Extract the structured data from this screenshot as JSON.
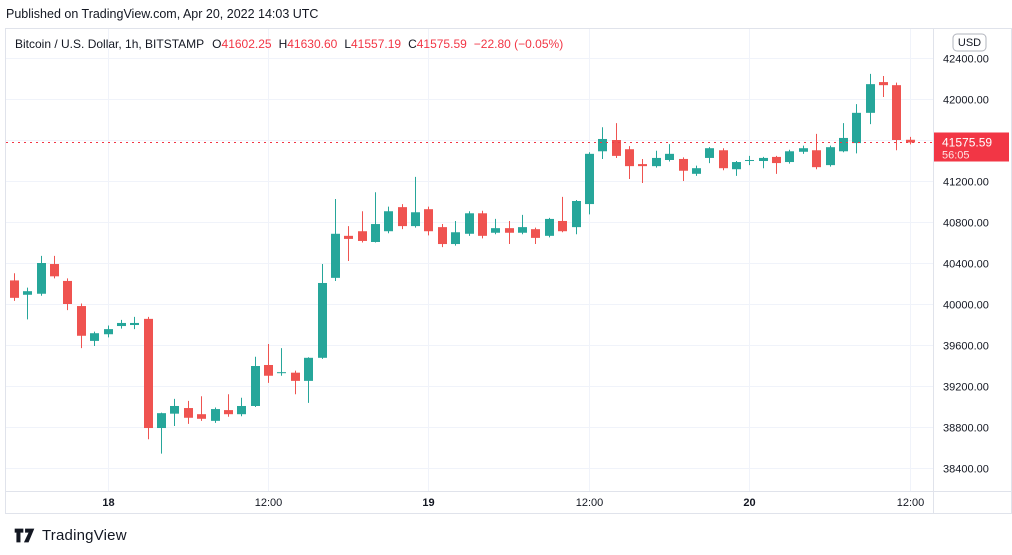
{
  "published_line": "Published on TradingView.com, Apr 20, 2022 14:03 UTC",
  "legend": {
    "symbol_title": "Bitcoin / U.S. Dollar, 1h, BITSTAMP",
    "ohlc_labels": {
      "o": "O",
      "h": "H",
      "l": "L",
      "c": "C"
    },
    "ohlc_values": {
      "o": "41602.25",
      "h": "41630.60",
      "l": "41557.19",
      "c": "41575.59"
    },
    "change_text": "−22.80 (−0.05%)"
  },
  "price_axis": {
    "currency_button": "USD",
    "ticks": [
      "42400.00",
      "42000.00",
      "41600.00",
      "41200.00",
      "40800.00",
      "40400.00",
      "40000.00",
      "39600.00",
      "39200.00",
      "38800.00",
      "38400.00"
    ],
    "last_price_badge": {
      "price": "41575.59",
      "countdown": "56:05"
    }
  },
  "time_axis": {
    "ticks": [
      {
        "label": "18",
        "candle_index": 7,
        "major": true
      },
      {
        "label": "12:00",
        "candle_index": 19,
        "major": false
      },
      {
        "label": "19",
        "candle_index": 31,
        "major": true
      },
      {
        "label": "12:00",
        "candle_index": 43,
        "major": false
      },
      {
        "label": "20",
        "candle_index": 55,
        "major": true
      },
      {
        "label": "12:00",
        "candle_index": 67,
        "major": false
      }
    ]
  },
  "chart_data": {
    "type": "candlestick",
    "title": "Bitcoin / U.S. Dollar, 1h, BITSTAMP",
    "symbol": "Bitcoin / U.S. Dollar",
    "interval": "1h",
    "exchange": "BITSTAMP",
    "ylabel": "USD",
    "ylim": [
      38175,
      42690
    ],
    "grid": "on",
    "price_grid_step": 400,
    "x_tick_labels": [
      "18",
      "12:00",
      "19",
      "12:00",
      "20",
      "12:00"
    ],
    "legend_position": "top-left",
    "last_price": 41575.59,
    "up_down_rule": "close >= open is up (teal), else down (red)",
    "candles_ohlc": [
      [
        40230,
        40300,
        40030,
        40060
      ],
      [
        40090,
        40160,
        39850,
        40125
      ],
      [
        40100,
        40470,
        40080,
        40400
      ],
      [
        40390,
        40470,
        40250,
        40270
      ],
      [
        40225,
        40250,
        39940,
        40000
      ],
      [
        39980,
        40005,
        39570,
        39690
      ],
      [
        39640,
        39730,
        39590,
        39715
      ],
      [
        39705,
        39790,
        39675,
        39755
      ],
      [
        39785,
        39845,
        39760,
        39815
      ],
      [
        39795,
        39875,
        39755,
        39815
      ],
      [
        39855,
        39875,
        38680,
        38790
      ],
      [
        38790,
        38940,
        38540,
        38935
      ],
      [
        38930,
        39075,
        38810,
        39005
      ],
      [
        38985,
        39055,
        38830,
        38890
      ],
      [
        38925,
        39100,
        38860,
        38880
      ],
      [
        38860,
        38990,
        38840,
        38975
      ],
      [
        38965,
        39120,
        38900,
        38925
      ],
      [
        38925,
        39085,
        38905,
        39005
      ],
      [
        39005,
        39485,
        38995,
        39395
      ],
      [
        39405,
        39610,
        39230,
        39300
      ],
      [
        39325,
        39570,
        39300,
        39335
      ],
      [
        39330,
        39350,
        39120,
        39250
      ],
      [
        39250,
        39480,
        39035,
        39475
      ],
      [
        39475,
        40390,
        39465,
        40205
      ],
      [
        40255,
        41025,
        40225,
        40685
      ],
      [
        40665,
        40760,
        40420,
        40635
      ],
      [
        40710,
        40905,
        40600,
        40615
      ],
      [
        40605,
        41090,
        40600,
        40780
      ],
      [
        40710,
        40950,
        40690,
        40905
      ],
      [
        40945,
        40975,
        40730,
        40760
      ],
      [
        40760,
        41240,
        40745,
        40895
      ],
      [
        40925,
        40950,
        40670,
        40710
      ],
      [
        40750,
        40780,
        40555,
        40585
      ],
      [
        40585,
        40810,
        40570,
        40700
      ],
      [
        40685,
        40905,
        40665,
        40885
      ],
      [
        40885,
        40910,
        40640,
        40665
      ],
      [
        40695,
        40830,
        40680,
        40740
      ],
      [
        40740,
        40810,
        40585,
        40695
      ],
      [
        40695,
        40870,
        40680,
        40750
      ],
      [
        40730,
        40745,
        40585,
        40645
      ],
      [
        40665,
        40840,
        40650,
        40830
      ],
      [
        40810,
        41045,
        40700,
        40710
      ],
      [
        40750,
        41015,
        40680,
        41005
      ],
      [
        40975,
        41480,
        40875,
        41465
      ],
      [
        41490,
        41725,
        41415,
        41610
      ],
      [
        41600,
        41765,
        41425,
        41445
      ],
      [
        41510,
        41540,
        41220,
        41345
      ],
      [
        41365,
        41415,
        41180,
        41345
      ],
      [
        41345,
        41495,
        41330,
        41425
      ],
      [
        41405,
        41560,
        41390,
        41465
      ],
      [
        41415,
        41430,
        41200,
        41300
      ],
      [
        41270,
        41350,
        41250,
        41325
      ],
      [
        41425,
        41530,
        41375,
        41520
      ],
      [
        41500,
        41520,
        41305,
        41325
      ],
      [
        41315,
        41395,
        41250,
        41385
      ],
      [
        41395,
        41445,
        41355,
        41405
      ],
      [
        41395,
        41435,
        41325,
        41425
      ],
      [
        41435,
        41445,
        41270,
        41375
      ],
      [
        41385,
        41505,
        41370,
        41490
      ],
      [
        41485,
        41545,
        41465,
        41520
      ],
      [
        41500,
        41660,
        41315,
        41335
      ],
      [
        41355,
        41545,
        41340,
        41530
      ],
      [
        41490,
        41765,
        41480,
        41620
      ],
      [
        41570,
        41950,
        41470,
        41865
      ],
      [
        41865,
        42245,
        41755,
        42145
      ],
      [
        42165,
        42225,
        42020,
        42135
      ],
      [
        42135,
        42160,
        41500,
        41600
      ],
      [
        41602.25,
        41630.6,
        41557.19,
        41575.59
      ]
    ]
  },
  "footer": {
    "brand": "TradingView"
  },
  "colors": {
    "up": "#26a69a",
    "down": "#ef5350",
    "accent_red": "#f23645",
    "text": "#131722",
    "grid": "#f0f3fa",
    "border": "#e0e3eb",
    "axis_border": "#d1d4dc",
    "button_border": "#b2b5be",
    "background": "#ffffff"
  }
}
